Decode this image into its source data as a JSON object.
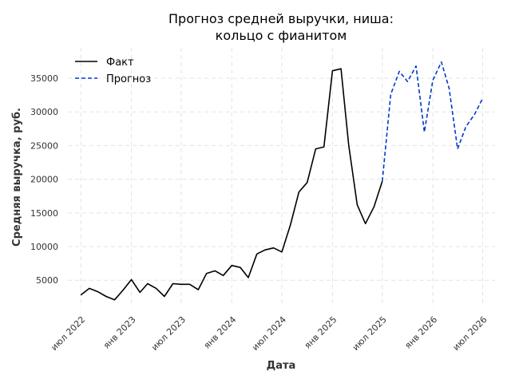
{
  "chart_data": {
    "type": "line",
    "title_lines": [
      "Прогноз средней выручки, ниша:",
      "кольцо с фианитом"
    ],
    "xlabel": "Дата",
    "ylabel": "Средняя выручка, руб.",
    "xlim": [
      "2022-05-15",
      "2026-08-15"
    ],
    "ylim": [
      1000,
      39500
    ],
    "y_ticks": [
      5000,
      10000,
      15000,
      20000,
      25000,
      30000,
      35000
    ],
    "x_ticks": [
      {
        "date": "2022-07-01",
        "label": "июл 2022"
      },
      {
        "date": "2023-01-01",
        "label": "янв 2023"
      },
      {
        "date": "2023-07-01",
        "label": "июл 2023"
      },
      {
        "date": "2024-01-01",
        "label": "янв 2024"
      },
      {
        "date": "2024-07-01",
        "label": "июл 2024"
      },
      {
        "date": "2025-01-01",
        "label": "янв 2025"
      },
      {
        "date": "2025-07-01",
        "label": "июл 2025"
      },
      {
        "date": "2026-01-01",
        "label": "янв 2026"
      },
      {
        "date": "2026-07-01",
        "label": "июл 2026"
      }
    ],
    "grid": true,
    "legend_position": "top-left",
    "series": [
      {
        "name": "Факт",
        "color": "#000000",
        "style": "solid",
        "points": [
          [
            "2022-07-01",
            2800
          ],
          [
            "2022-08-01",
            3800
          ],
          [
            "2022-09-01",
            3300
          ],
          [
            "2022-10-01",
            2600
          ],
          [
            "2022-11-01",
            2100
          ],
          [
            "2022-12-01",
            3500
          ],
          [
            "2023-01-01",
            5100
          ],
          [
            "2023-02-01",
            3200
          ],
          [
            "2023-03-01",
            4500
          ],
          [
            "2023-04-01",
            3800
          ],
          [
            "2023-05-01",
            2600
          ],
          [
            "2023-06-01",
            4500
          ],
          [
            "2023-07-01",
            4400
          ],
          [
            "2023-08-01",
            4400
          ],
          [
            "2023-09-01",
            3600
          ],
          [
            "2023-10-01",
            6000
          ],
          [
            "2023-11-01",
            6400
          ],
          [
            "2023-12-01",
            5700
          ],
          [
            "2024-01-01",
            7200
          ],
          [
            "2024-02-01",
            6900
          ],
          [
            "2024-03-01",
            5400
          ],
          [
            "2024-04-01",
            8900
          ],
          [
            "2024-05-01",
            9500
          ],
          [
            "2024-06-01",
            9800
          ],
          [
            "2024-07-01",
            9200
          ],
          [
            "2024-08-01",
            13200
          ],
          [
            "2024-09-01",
            18100
          ],
          [
            "2024-10-01",
            19500
          ],
          [
            "2024-11-01",
            24500
          ],
          [
            "2024-12-01",
            24800
          ],
          [
            "2025-01-01",
            36100
          ],
          [
            "2025-02-01",
            36400
          ],
          [
            "2025-03-01",
            25100
          ],
          [
            "2025-04-01",
            16200
          ],
          [
            "2025-05-01",
            13400
          ],
          [
            "2025-06-01",
            15900
          ],
          [
            "2025-07-01",
            19700
          ]
        ]
      },
      {
        "name": "Прогноз",
        "color": "#0039c8",
        "style": "dashed",
        "points": [
          [
            "2025-07-01",
            19700
          ],
          [
            "2025-08-01",
            32600
          ],
          [
            "2025-09-01",
            36000
          ],
          [
            "2025-10-01",
            34500
          ],
          [
            "2025-11-01",
            36800
          ],
          [
            "2025-12-01",
            27000
          ],
          [
            "2026-01-01",
            34700
          ],
          [
            "2026-02-01",
            37400
          ],
          [
            "2026-03-01",
            33500
          ],
          [
            "2026-04-01",
            24500
          ],
          [
            "2026-05-01",
            27800
          ],
          [
            "2026-06-01",
            29600
          ],
          [
            "2026-07-01",
            32000
          ]
        ]
      }
    ]
  }
}
